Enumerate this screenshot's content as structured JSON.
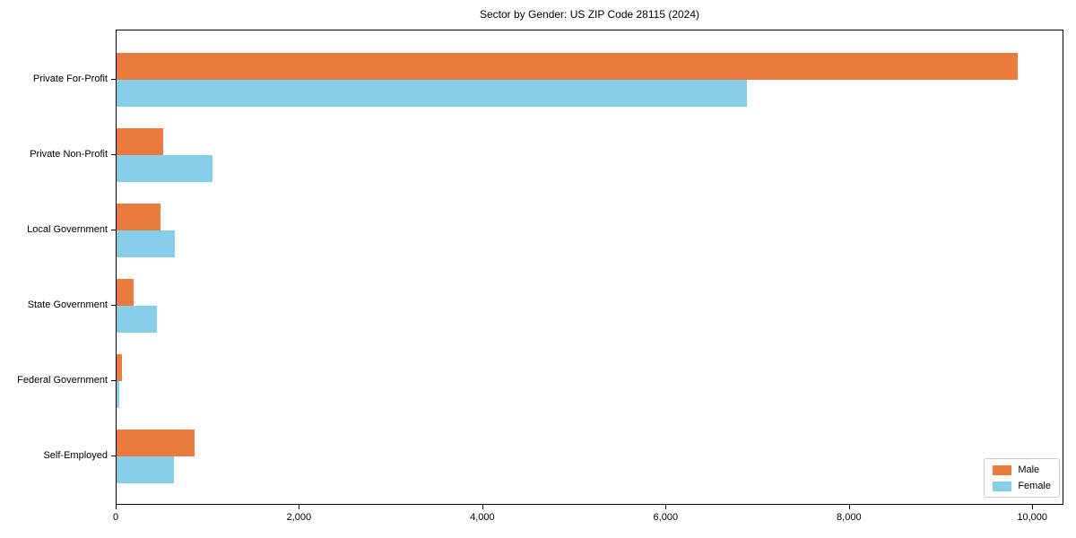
{
  "title": "Sector by Gender: US ZIP Code 28115 (2024)",
  "chart_data": {
    "type": "bar",
    "orientation": "horizontal",
    "title": "Sector by Gender: US ZIP Code 28115 (2024)",
    "categories": [
      "Private For-Profit",
      "Private Non-Profit",
      "Local Government",
      "State Government",
      "Federal Government",
      "Self-Employed"
    ],
    "series": [
      {
        "name": "Male",
        "color": "#e87b3d",
        "values": [
          9835,
          510,
          480,
          190,
          55,
          850
        ]
      },
      {
        "name": "Female",
        "color": "#87ceeb",
        "values": [
          6880,
          1050,
          640,
          440,
          30,
          625
        ]
      }
    ],
    "xlabel": "",
    "ylabel": "",
    "xlim": [
      0,
      10340
    ],
    "xticks": [
      0,
      2000,
      4000,
      6000,
      8000,
      10000
    ],
    "xtick_labels": [
      "0",
      "2,000",
      "4,000",
      "6,000",
      "8,000",
      "10,000"
    ],
    "grid": false,
    "legend": {
      "position": "lower right",
      "entries": [
        "Male",
        "Female"
      ]
    }
  }
}
